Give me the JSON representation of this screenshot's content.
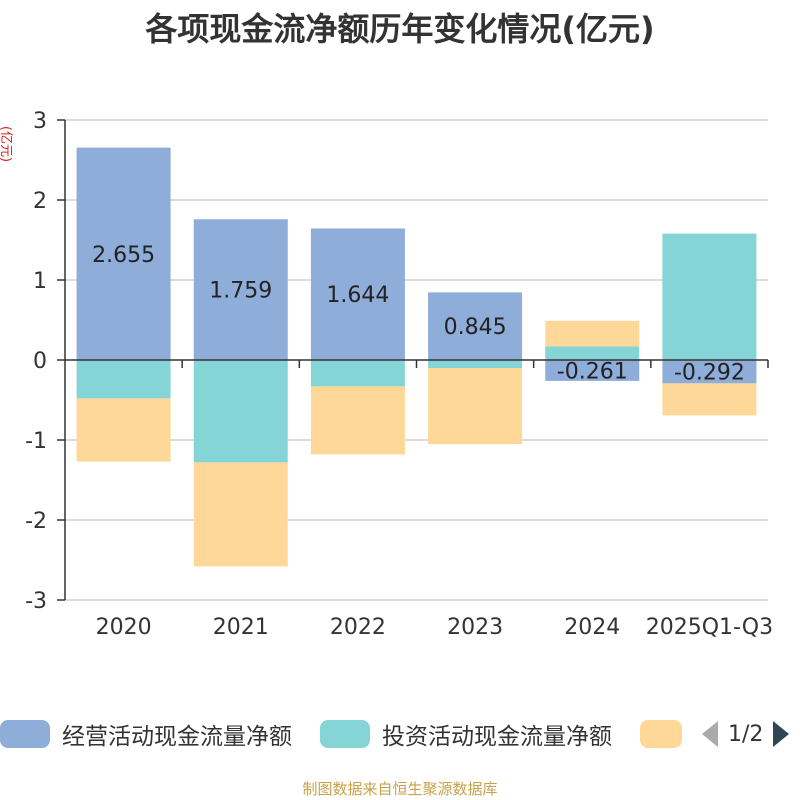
{
  "chart_data": {
    "type": "bar",
    "stacked": true,
    "title": "各项现金流净额历年变化情况(亿元)",
    "ylabel": "(亿元)",
    "ylim": [
      -3,
      3
    ],
    "yticks": [
      3,
      2,
      1,
      0,
      -1,
      -2,
      -3
    ],
    "categories": [
      "2020",
      "2021",
      "2022",
      "2023",
      "2024",
      "2025Q1-Q3"
    ],
    "series": [
      {
        "name": "经营活动现金流量净额",
        "color": "#8eadd9",
        "values": [
          2.655,
          1.759,
          1.644,
          0.845,
          -0.261,
          -0.292
        ],
        "labels": [
          "2.655",
          "1.759",
          "1.644",
          "0.845",
          "-0.261",
          "-0.292"
        ]
      },
      {
        "name": "投资活动现金流量净额",
        "color": "#86d5d6",
        "values": [
          -0.48,
          -1.28,
          -0.33,
          -0.1,
          0.17,
          1.58
        ]
      },
      {
        "name": "",
        "color": "#fdd899",
        "values": [
          -0.79,
          -1.3,
          -0.85,
          -0.95,
          0.32,
          -0.4
        ]
      }
    ],
    "legend_placement": "bottom"
  },
  "legend": {
    "items": [
      "经营活动现金流量净额",
      "投资活动现金流量净额",
      ""
    ],
    "page": "1/2"
  },
  "footer": "制图数据来自恒生聚源数据库"
}
